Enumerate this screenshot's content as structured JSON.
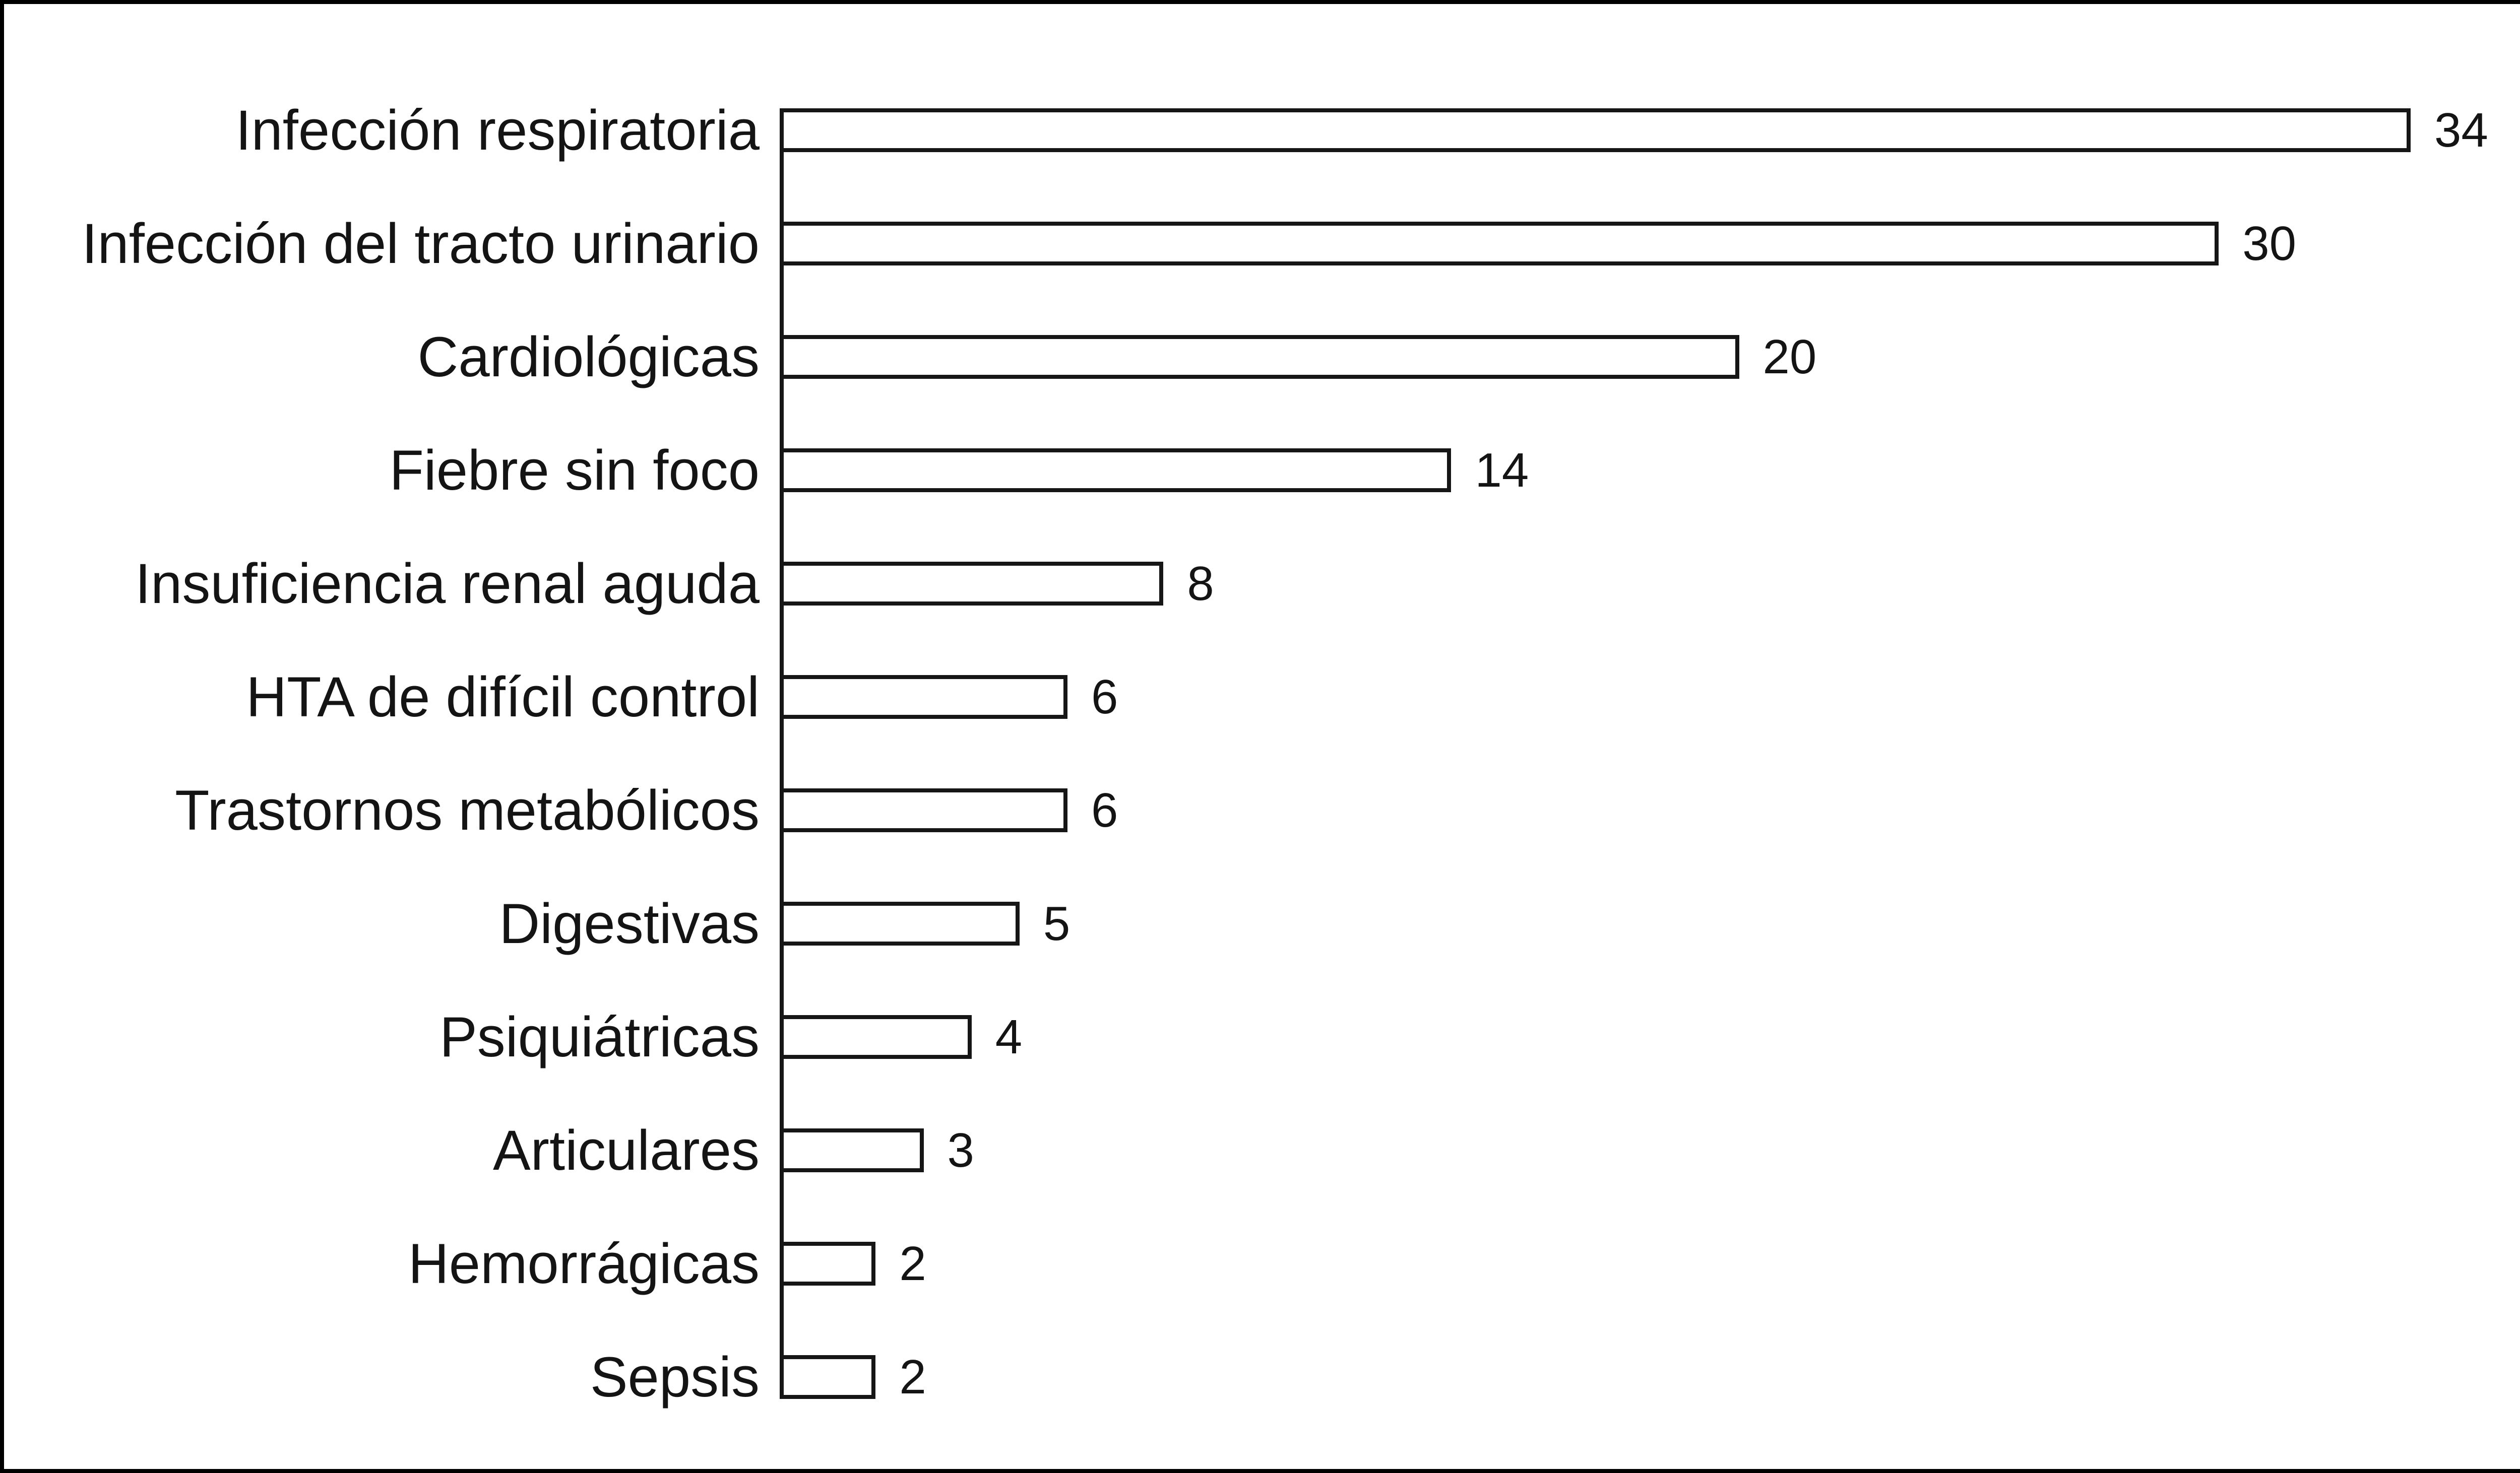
{
  "figure": {
    "background_color": "#ffffff",
    "frame_color": "#000000",
    "text_color": "#141414",
    "bar_fill_color": "#ffffff",
    "bar_outline_color": "#161616"
  },
  "chart_data": {
    "type": "bar",
    "orientation": "horizontal",
    "title": "",
    "xlabel": "",
    "ylabel": "",
    "categories": [
      "Infección respiratoria",
      "Infección del tracto urinario",
      "Cardiológicas",
      "Fiebre sin foco",
      "Insuficiencia renal aguda",
      "HTA de difícil control",
      "Trastornos metabólicos",
      "Digestivas",
      "Psiquiátricas",
      "Articulares",
      "Hemorrágicas",
      "Sepsis"
    ],
    "values": [
      34,
      30,
      20,
      14,
      8,
      6,
      6,
      5,
      4,
      3,
      2,
      2
    ],
    "value_labels_shown": true,
    "xlim": [
      0,
      34
    ],
    "grid": false,
    "legend": false,
    "axis_line": "vertical-left-only"
  }
}
